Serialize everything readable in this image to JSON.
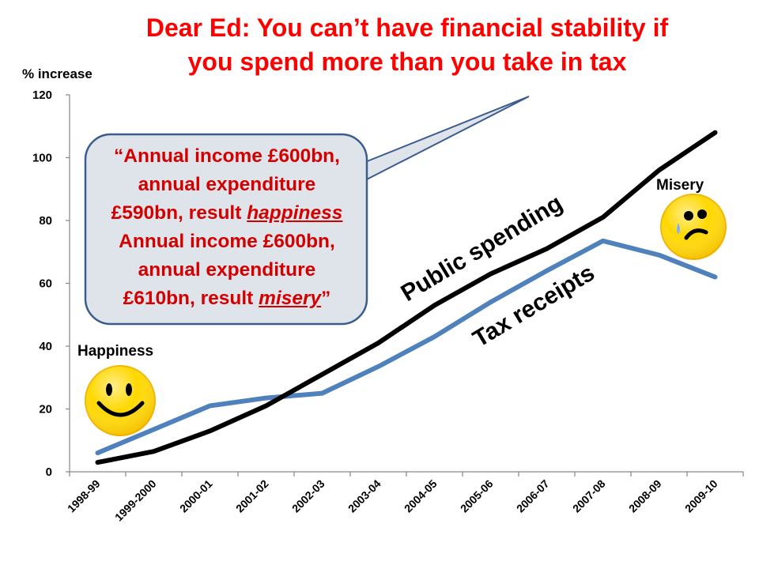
{
  "title": {
    "line1": "Dear Ed: You can’t have financial stability if",
    "line2": "you spend more than you take in tax"
  },
  "callout": {
    "line1": "“Annual income £600bn,",
    "line2": "annual expenditure",
    "line3a": "£590bn, result ",
    "line3b": "happiness",
    "line4": "Annual income £600bn,",
    "line5": "annual expenditure",
    "line6a": "£610bn, result ",
    "line6b": "misery",
    "line6c": "”"
  },
  "faces": {
    "happy_label": "Happiness",
    "sad_label": "Misery"
  },
  "colors": {
    "title": "#ff0000",
    "callout_text": "#d40000",
    "callout_border": "#3b5c8f",
    "public_spending": "#000000",
    "tax_receipts": "#4f81bd",
    "face": "#ffd800"
  },
  "chart_data": {
    "type": "line",
    "ylabel": "% increase",
    "ylim": [
      0,
      120
    ],
    "yticks": [
      0,
      20,
      40,
      60,
      80,
      100,
      120
    ],
    "categories": [
      "1998-99",
      "1999-2000",
      "2000-01",
      "2001-02",
      "2002-03",
      "2003-04",
      "2004-05",
      "2005-06",
      "2006-07",
      "2007-08",
      "2008-09",
      "2009-10"
    ],
    "series": [
      {
        "name": "Public spending",
        "color": "#000000",
        "values": [
          3,
          6.5,
          13,
          21,
          31,
          41,
          53,
          63,
          71,
          81,
          96,
          108
        ]
      },
      {
        "name": "Tax receipts",
        "color": "#4f81bd",
        "values": [
          6,
          13.5,
          21,
          23.5,
          25,
          33.5,
          43,
          54,
          64,
          73.5,
          69,
          62
        ]
      }
    ],
    "grid": false
  }
}
